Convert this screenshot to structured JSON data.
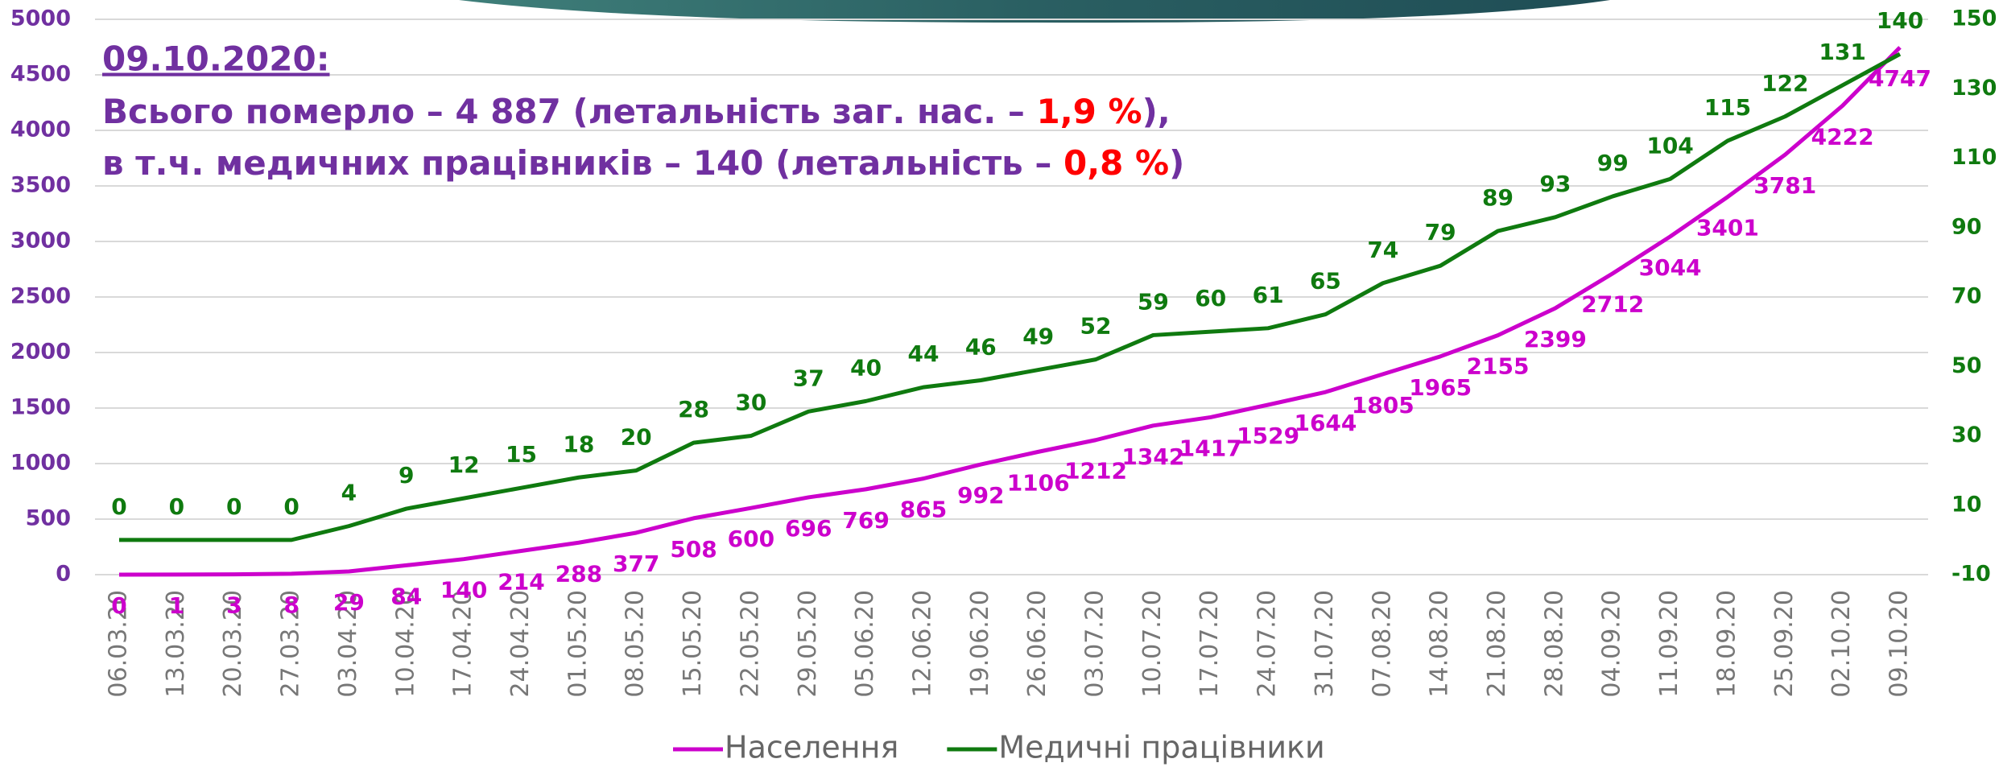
{
  "chart_data": {
    "type": "line",
    "title": {
      "date": "09.10.2020:",
      "line1": [
        "Всього померло – 4 887 (летальність заг. нас. – ",
        "1,9 %",
        "),"
      ],
      "line2": [
        "в т.ч. медичних працівників – 140 (летальність – ",
        "0,8 %",
        ")"
      ]
    },
    "categories": [
      "06.03.20",
      "13.03.20",
      "20.03.20",
      "27.03.20",
      "03.04.20",
      "10.04.20",
      "17.04.20",
      "24.04.20",
      "01.05.20",
      "08.05.20",
      "15.05.20",
      "22.05.20",
      "29.05.20",
      "05.06.20",
      "12.06.20",
      "19.06.20",
      "26.06.20",
      "03.07.20",
      "10.07.20",
      "17.07.20",
      "24.07.20",
      "31.07.20",
      "07.08.20",
      "14.08.20",
      "21.08.20",
      "28.08.20",
      "04.09.20",
      "11.09.20",
      "18.09.20",
      "25.09.20",
      "02.10.20",
      "09.10.20"
    ],
    "series": [
      {
        "name": "Населення",
        "color": "#cc00cc",
        "values": [
          0,
          1,
          3,
          8,
          29,
          84,
          140,
          214,
          288,
          377,
          508,
          600,
          696,
          769,
          865,
          992,
          1106,
          1212,
          1342,
          1417,
          1529,
          1644,
          1805,
          1965,
          2155,
          2399,
          2712,
          3044,
          3401,
          3781,
          4222,
          4747
        ]
      },
      {
        "name": "Медичні працівники",
        "color": "#0f7a0f",
        "axis": "y2",
        "values": [
          0,
          0,
          0,
          0,
          4,
          9,
          12,
          15,
          18,
          20,
          28,
          30,
          37,
          40,
          44,
          46,
          49,
          52,
          59,
          60,
          61,
          65,
          74,
          79,
          89,
          93,
          99,
          104,
          115,
          122,
          131,
          140
        ]
      }
    ],
    "ylim": [
      0,
      5000
    ],
    "yticks": [
      0,
      500,
      1000,
      1500,
      2000,
      2500,
      3000,
      3500,
      4000,
      4500,
      5000
    ],
    "y2lim": [
      -10,
      150
    ],
    "y2ticks": [
      -10,
      10,
      30,
      50,
      70,
      90,
      110,
      130,
      150
    ],
    "grid": true,
    "legend": "bottom"
  }
}
